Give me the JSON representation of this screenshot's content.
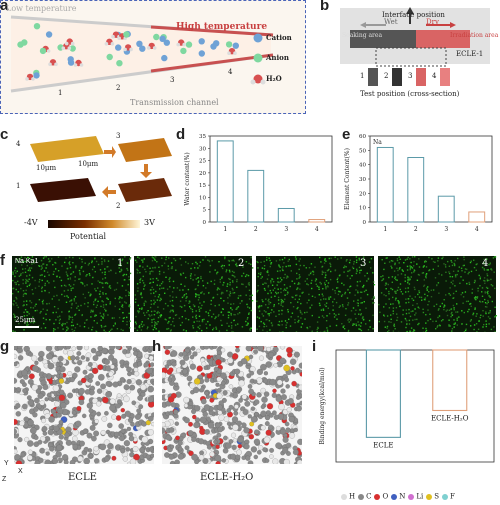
{
  "panels": {
    "a": {
      "label": "a",
      "low_temp": "Low temperature",
      "high_temp": "High temperature",
      "channel": "Transmission channel",
      "positions": [
        "1",
        "2",
        "3",
        "4"
      ],
      "legend": [
        "Cation",
        "Anion",
        "H₂O"
      ]
    },
    "b": {
      "label": "b",
      "interface": "Interface position",
      "wet": "Wet",
      "dry": "Dry",
      "soaking": "Soaking area",
      "irradiation": "Irradiation area",
      "sample": "ECLE-1",
      "positions": [
        "1",
        "2",
        "3",
        "4"
      ],
      "test": "Test position (cross-section)"
    },
    "c": {
      "label": "c",
      "scale_x": "10μm",
      "scale_y": "10μm",
      "tiles": [
        "4",
        "3",
        "2",
        "1"
      ],
      "cbar_min": "-4V",
      "cbar_max": "3V",
      "cbar_title": "Potential"
    },
    "f": {
      "label": "f",
      "element": "Na Ka1",
      "scale": "25μm",
      "tiles": [
        "1",
        "2",
        "3",
        "4"
      ]
    },
    "g": {
      "label": "g",
      "caption": "ECLE"
    },
    "h": {
      "label": "h",
      "caption": "ECLE-H₂O"
    },
    "axes": {
      "y": "Y",
      "x": "X",
      "z": "Z"
    },
    "legend_atoms": [
      "H",
      "C",
      "O",
      "N",
      "Li",
      "S",
      "F"
    ]
  },
  "chart_data": [
    {
      "type": "bar",
      "title": "",
      "ylabel": "Water content(%)",
      "xlabel": "",
      "categories": [
        "1",
        "2",
        "3",
        "4"
      ],
      "values": [
        33,
        21,
        5.5,
        1
      ],
      "ylim": [
        0,
        35
      ],
      "yticks": [
        "0",
        "5",
        "10",
        "15",
        "20",
        "25",
        "30",
        "35"
      ],
      "color": "#5b9aa8",
      "last_color": "#e0a07a"
    },
    {
      "type": "bar",
      "title": "",
      "ylabel": "Element Content(%)",
      "xlabel": "",
      "series_label": "Na",
      "categories": [
        "1",
        "2",
        "3",
        "4"
      ],
      "values": [
        52,
        45,
        18,
        7
      ],
      "ylim": [
        0,
        60
      ],
      "yticks": [
        "0",
        "10",
        "20",
        "30",
        "40",
        "50",
        "60"
      ],
      "color": "#5b9aa8",
      "last_color": "#e0a07a"
    },
    {
      "type": "bar",
      "title": "",
      "ylabel": "Binding energy(kcal/mol)",
      "xlabel": "",
      "categories": [
        "ECLE",
        "ECLE-H₂O"
      ],
      "values": [
        -0.39,
        -0.27
      ],
      "ylim": [
        -0.5,
        0
      ],
      "colors": [
        "#5b9aa8",
        "#e0a07a"
      ]
    }
  ]
}
